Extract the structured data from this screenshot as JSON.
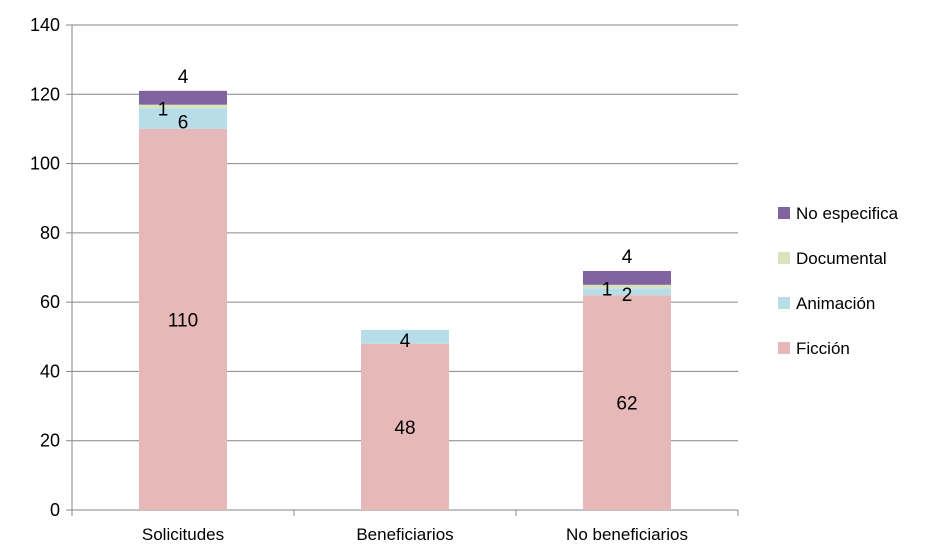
{
  "chart_data": {
    "type": "bar",
    "stacked": true,
    "title": "",
    "xlabel": "",
    "ylabel": "",
    "ylim": [
      0,
      140
    ],
    "yticks": [
      0,
      20,
      40,
      60,
      80,
      100,
      120,
      140
    ],
    "grid": true,
    "legend_position": "right",
    "categories": [
      "Solicitudes",
      "Beneficiarios",
      "No beneficiarios"
    ],
    "series": [
      {
        "name": "Ficción",
        "color": "#e6b9b8",
        "values": [
          110,
          48,
          62
        ],
        "labels": [
          "110",
          "48",
          "62"
        ]
      },
      {
        "name": "Animación",
        "color": "#b7dee8",
        "values": [
          6,
          4,
          2
        ],
        "labels": [
          "6",
          "4",
          "2"
        ]
      },
      {
        "name": "Documental",
        "color": "#d7e4bd",
        "values": [
          1,
          0,
          1
        ],
        "labels": [
          "1",
          "",
          "1"
        ]
      },
      {
        "name": "No especifica",
        "color": "#8064a2",
        "values": [
          4,
          0,
          4
        ],
        "labels": [
          "4",
          "",
          "4"
        ]
      }
    ]
  }
}
